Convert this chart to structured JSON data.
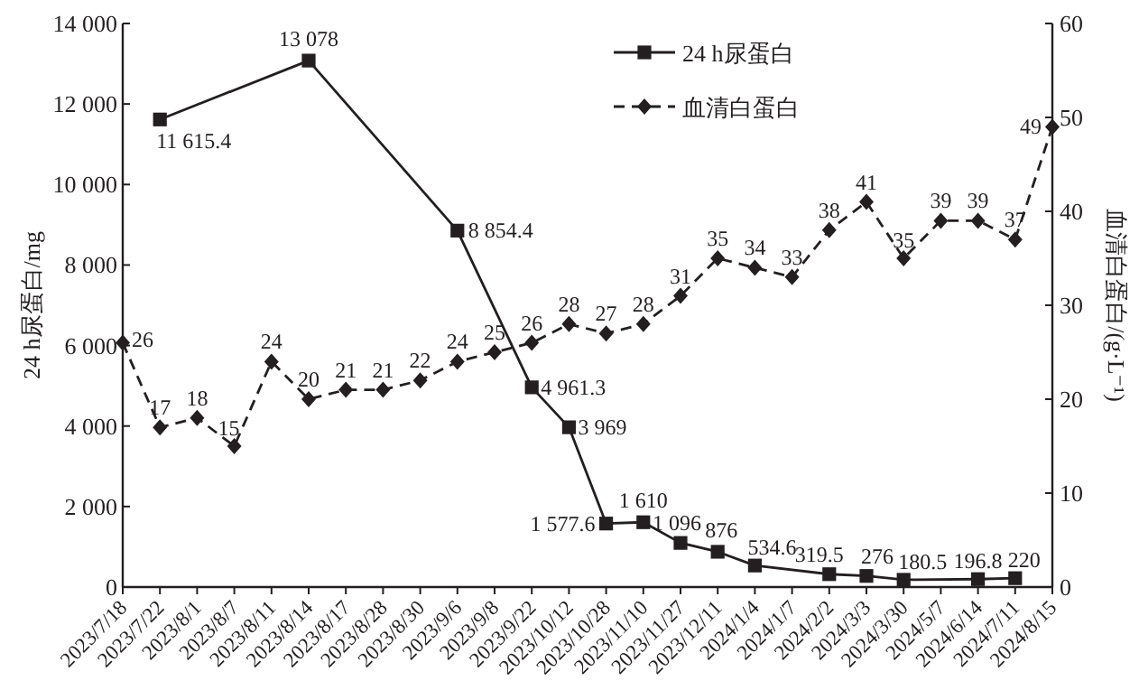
{
  "chart_data": {
    "type": "line",
    "categories": [
      "2023/7/18",
      "2023/7/22",
      "2023/8/1",
      "2023/8/7",
      "2023/8/11",
      "2023/8/14",
      "2023/8/17",
      "2023/8/28",
      "2023/8/30",
      "2023/9/6",
      "2023/9/8",
      "2023/9/22",
      "2023/10/12",
      "2023/10/28",
      "2023/11/10",
      "2023/11/27",
      "2023/12/11",
      "2024/1/4",
      "2024/1/7",
      "2024/2/2",
      "2024/3/3",
      "2024/3/30",
      "2024/5/7",
      "2024/6/14",
      "2024/7/11",
      "2024/8/15"
    ],
    "ylabel": "24 h尿蛋白/mg",
    "y2label": "血清白蛋白/(g·L⁻¹)",
    "ylim": [
      0,
      14000
    ],
    "yticks": [
      0,
      {
        "value": 2000,
        "label": "2 000"
      },
      {
        "value": 4000,
        "label": "4 000"
      },
      {
        "value": 6000,
        "label": "6 000"
      },
      {
        "value": 8000,
        "label": "8 000"
      },
      {
        "value": 10000,
        "label": "10 000"
      },
      {
        "value": 12000,
        "label": "12 000"
      },
      {
        "value": 14000,
        "label": "14 000"
      }
    ],
    "y2lim": [
      0,
      60
    ],
    "y2ticks": [
      0,
      10,
      20,
      30,
      40,
      50,
      60
    ],
    "legend": "top",
    "series": [
      {
        "name": "24 h尿蛋白",
        "color": "#231f20",
        "marker": "square",
        "line_style": "solid",
        "values": [
          null,
          11615.4,
          null,
          null,
          null,
          13078,
          null,
          null,
          null,
          8854.4,
          null,
          4961.3,
          3969,
          1577.6,
          1610,
          1096,
          876,
          534.6,
          null,
          319.5,
          276,
          180.5,
          null,
          196.8,
          220,
          null
        ],
        "value_labels": [
          null,
          "11 615.4",
          null,
          null,
          null,
          "13 078",
          null,
          null,
          null,
          "8 854.4",
          null,
          "4 961.3",
          "3 969",
          "1 577.6",
          "1 610",
          "1 096",
          "876",
          "534.6",
          null,
          "319.5",
          "276",
          "180.5",
          null,
          "196.8",
          "220",
          null
        ]
      },
      {
        "name": "血清白蛋白",
        "color": "#231f20",
        "marker": "diamond",
        "line_style": "dashed",
        "axis": "y2",
        "values": [
          26,
          17,
          18,
          15,
          24,
          20,
          21,
          21,
          22,
          24,
          25,
          26,
          28,
          27,
          28,
          31,
          35,
          34,
          33,
          38,
          41,
          35,
          39,
          39,
          37,
          49
        ],
        "value_labels": [
          "26",
          "17",
          "18",
          "15",
          "24",
          "20",
          "21",
          "21",
          "22",
          "24",
          "25",
          "26",
          "28",
          "27",
          "28",
          "31",
          "35",
          "34",
          "33",
          "38",
          "41",
          "35",
          "39",
          "39",
          "37",
          "49"
        ]
      }
    ]
  }
}
